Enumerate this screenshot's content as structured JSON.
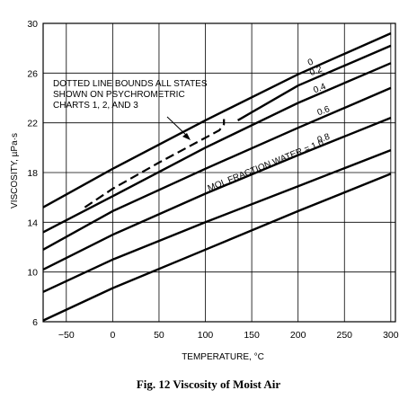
{
  "caption": "Fig. 12    Viscosity of Moist Air",
  "chart_data": {
    "type": "line",
    "xlabel": "TEMPERATURE, °C",
    "ylabel": "VISCOSITY, µPa·s",
    "xlim": [
      -75,
      305
    ],
    "ylim": [
      6,
      30
    ],
    "xticks": [
      -50,
      0,
      50,
      100,
      150,
      200,
      250,
      300
    ],
    "yticks": [
      6,
      10,
      14,
      18,
      22,
      26,
      30
    ],
    "grid": true,
    "series": [
      {
        "name": "0",
        "x": [
          -75,
          0,
          100,
          200,
          300
        ],
        "y": [
          15.2,
          18.3,
          22.2,
          25.9,
          29.2
        ]
      },
      {
        "name": "0.2",
        "x": [
          -75,
          0,
          100,
          200,
          300
        ],
        "y": [
          14.6,
          17.5,
          21.6,
          25.0,
          28.2
        ]
      },
      {
        "name": "0.4",
        "x": [
          -75,
          0,
          100,
          200,
          300
        ],
        "y": [
          13.2,
          16.1,
          20.0,
          23.6,
          26.8
        ]
      },
      {
        "name": "0.6",
        "x": [
          -75,
          0,
          100,
          200,
          300
        ],
        "y": [
          11.8,
          14.9,
          18.3,
          21.6,
          24.8
        ]
      },
      {
        "name": "0.8",
        "x": [
          -75,
          0,
          100,
          200,
          300
        ],
        "y": [
          10.2,
          13.0,
          16.3,
          19.4,
          22.4
        ]
      },
      {
        "name": "MOL FRACTION WATER = 1.0",
        "x": [
          -75,
          0,
          100,
          200,
          300
        ],
        "y": [
          8.4,
          11.0,
          14.0,
          16.9,
          19.8
        ]
      },
      {
        "name": "",
        "x": [
          -75,
          0,
          100,
          200,
          300
        ],
        "y": [
          6.1,
          8.7,
          11.8,
          14.9,
          17.9
        ]
      }
    ],
    "boundary": {
      "x": [
        -30,
        0,
        50,
        100,
        115,
        120,
        120
      ],
      "y": [
        15.2,
        16.7,
        18.8,
        20.8,
        21.4,
        21.9,
        22.3
      ]
    },
    "annotation": [
      "DOTTED LINE BOUNDS ALL STATES",
      "SHOWN ON PSYCHROMETRIC",
      "CHARTS 1, 2, AND 3"
    ]
  }
}
